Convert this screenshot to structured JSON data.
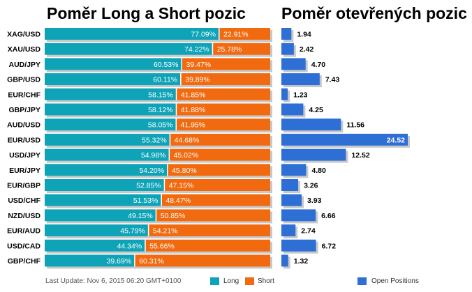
{
  "titles": {
    "left": "Poměr Long a Short pozic",
    "right": "Poměr otevřených pozic"
  },
  "footer": {
    "last_update": "Last Update: Nov 6, 2015 06:20 GMT+0100"
  },
  "legend": {
    "long": "Long",
    "short": "Short",
    "open_positions": "Open Positions"
  },
  "colors": {
    "long": "#0fa3b8",
    "short": "#f26a0f",
    "open_positions": "#2e6fd6",
    "shadow": "#c8c8c8"
  },
  "chart_data": [
    {
      "type": "bar",
      "orientation": "horizontal",
      "stacked": true,
      "title": "Poměr Long a Short pozic",
      "categories": [
        "XAG/USD",
        "XAU/USD",
        "AUD/JPY",
        "GBP/USD",
        "EUR/CHF",
        "GBP/JPY",
        "AUD/USD",
        "EUR/USD",
        "USD/JPY",
        "EUR/JPY",
        "EUR/GBP",
        "USD/CHF",
        "NZD/USD",
        "EUR/AUD",
        "USD/CAD",
        "GBP/CHF"
      ],
      "series": [
        {
          "name": "Long",
          "values": [
            77.09,
            74.22,
            60.53,
            60.11,
            58.15,
            58.12,
            58.05,
            55.32,
            54.98,
            54.2,
            52.85,
            51.53,
            49.15,
            45.79,
            44.34,
            39.69
          ],
          "labels": [
            "77.09%",
            "74.22%",
            "60.53%",
            "60.11%",
            "58.15%",
            "58.12%",
            "58.05%",
            "55.32%",
            "54.98%",
            "54.20%",
            "52.85%",
            "51.53%",
            "49.15%",
            "45.79%",
            "44.34%",
            "39.69%"
          ]
        },
        {
          "name": "Short",
          "values": [
            22.91,
            25.78,
            39.47,
            39.89,
            41.85,
            41.88,
            41.95,
            44.68,
            45.02,
            45.8,
            47.15,
            48.47,
            50.85,
            54.21,
            55.66,
            60.31
          ],
          "labels": [
            "22.91%",
            "25.78%",
            "39.47%",
            "39.89%",
            "41.85%",
            "41.88%",
            "41.95%",
            "44.68%",
            "45.02%",
            "45.80%",
            "47.15%",
            "48.47%",
            "50.85%",
            "54.21%",
            "55.66%",
            "60.31%"
          ]
        }
      ],
      "xlim": [
        0,
        100
      ],
      "legend": "bottom"
    },
    {
      "type": "bar",
      "orientation": "horizontal",
      "title": "Poměr otevřených pozic",
      "categories": [
        "XAG/USD",
        "XAU/USD",
        "AUD/JPY",
        "GBP/USD",
        "EUR/CHF",
        "GBP/JPY",
        "AUD/USD",
        "EUR/USD",
        "USD/JPY",
        "EUR/JPY",
        "EUR/GBP",
        "USD/CHF",
        "NZD/USD",
        "EUR/AUD",
        "USD/CAD",
        "GBP/CHF"
      ],
      "series": [
        {
          "name": "Open Positions",
          "values": [
            1.94,
            2.42,
            4.7,
            7.43,
            1.23,
            4.25,
            11.56,
            24.52,
            12.52,
            4.8,
            3.26,
            3.93,
            6.66,
            2.74,
            6.72,
            1.32
          ],
          "labels": [
            "1.94",
            "2.42",
            "4.70",
            "7.43",
            "1.23",
            "4.25",
            "11.56",
            "24.52",
            "12.52",
            "4.80",
            "3.26",
            "3.93",
            "6.66",
            "2.74",
            "6.72",
            "1.32"
          ]
        }
      ],
      "xlim": [
        0,
        24.52
      ],
      "legend": "bottom"
    }
  ]
}
